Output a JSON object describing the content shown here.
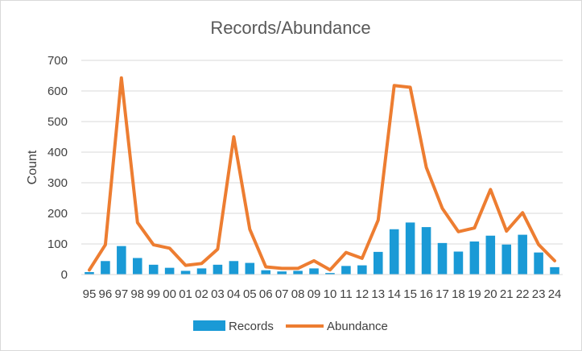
{
  "chart_data": {
    "type": "bar+line",
    "title": "Records/Abundance",
    "xlabel": "",
    "ylabel": "Count",
    "ylim": [
      0,
      700
    ],
    "yticks": [
      0,
      100,
      200,
      300,
      400,
      500,
      600,
      700
    ],
    "grid": true,
    "legend": "bottom",
    "categories": [
      "95",
      "96",
      "97",
      "98",
      "99",
      "00",
      "01",
      "02",
      "03",
      "04",
      "05",
      "06",
      "07",
      "08",
      "09",
      "10",
      "11",
      "12",
      "13",
      "14",
      "15",
      "16",
      "17",
      "18",
      "19",
      "20",
      "21",
      "22",
      "23",
      "24"
    ],
    "series": [
      {
        "name": "Records",
        "type": "bar",
        "color": "#1a9ad6",
        "values": [
          8,
          44,
          93,
          54,
          32,
          22,
          12,
          20,
          32,
          44,
          38,
          14,
          10,
          12,
          20,
          5,
          28,
          30,
          74,
          148,
          170,
          155,
          103,
          75,
          108,
          127,
          98,
          130,
          72,
          24
        ]
      },
      {
        "name": "Abundance",
        "type": "line",
        "color": "#ed7d31",
        "values": [
          15,
          97,
          643,
          170,
          97,
          86,
          30,
          36,
          83,
          450,
          148,
          25,
          20,
          20,
          45,
          15,
          72,
          53,
          178,
          618,
          612,
          350,
          216,
          140,
          152,
          278,
          142,
          202,
          98,
          45
        ]
      }
    ]
  }
}
